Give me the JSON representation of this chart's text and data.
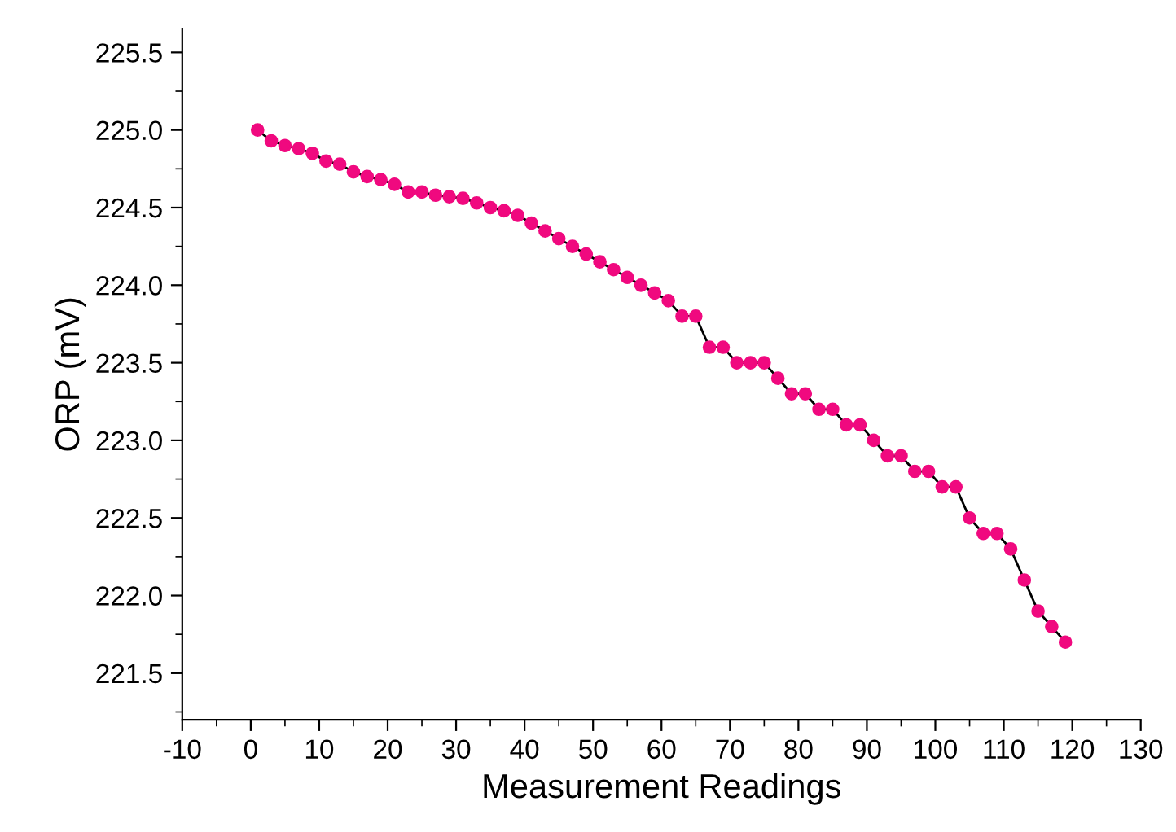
{
  "chart_data": {
    "type": "line",
    "xlabel": "Measurement Readings",
    "ylabel": "ORP (mV)",
    "x": [
      1,
      3,
      5,
      7,
      9,
      11,
      13,
      15,
      17,
      19,
      21,
      23,
      25,
      27,
      29,
      31,
      33,
      35,
      37,
      39,
      41,
      43,
      45,
      47,
      49,
      51,
      53,
      55,
      57,
      59,
      61,
      63,
      65,
      67,
      69,
      71,
      73,
      75,
      77,
      79,
      81,
      83,
      85,
      87,
      89,
      91,
      93,
      95,
      97,
      99,
      101,
      103,
      105,
      107,
      109,
      111,
      113,
      115,
      117,
      119
    ],
    "series": [
      {
        "color": "#f0097f",
        "values": [
          225.0,
          224.93,
          224.9,
          224.88,
          224.85,
          224.8,
          224.78,
          224.73,
          224.7,
          224.68,
          224.65,
          224.6,
          224.6,
          224.58,
          224.57,
          224.56,
          224.53,
          224.5,
          224.48,
          224.45,
          224.4,
          224.35,
          224.3,
          224.25,
          224.2,
          224.15,
          224.1,
          224.05,
          224.0,
          223.95,
          223.9,
          223.8,
          223.8,
          223.6,
          223.6,
          223.5,
          223.5,
          223.5,
          223.4,
          223.3,
          223.3,
          223.2,
          223.2,
          223.1,
          223.1,
          223.0,
          222.9,
          222.9,
          222.8,
          222.8,
          222.7,
          222.7,
          222.5,
          222.4,
          222.4,
          222.3,
          222.1,
          221.9,
          221.8,
          221.7
        ]
      }
    ],
    "marker": "circle",
    "line_style": "solid",
    "grid": false,
    "legend": false,
    "xlim": [
      -10,
      130
    ],
    "xticks": [
      -10,
      0,
      10,
      20,
      30,
      40,
      50,
      60,
      70,
      80,
      90,
      100,
      110,
      120,
      130
    ],
    "ylim": [
      221.2,
      225.65
    ],
    "yticks": [
      {
        "value": 221.5,
        "label": "221.5"
      },
      {
        "value": 222,
        "label": "222.0"
      },
      {
        "value": 222.5,
        "label": "222.5"
      },
      {
        "value": 223,
        "label": "223.0"
      },
      {
        "value": 223.5,
        "label": "223.5"
      },
      {
        "value": 224,
        "label": "224.0"
      },
      {
        "value": 224.5,
        "label": "224.5"
      },
      {
        "value": 225,
        "label": "225.0"
      },
      {
        "value": 225.5,
        "label": "225.5"
      }
    ]
  }
}
